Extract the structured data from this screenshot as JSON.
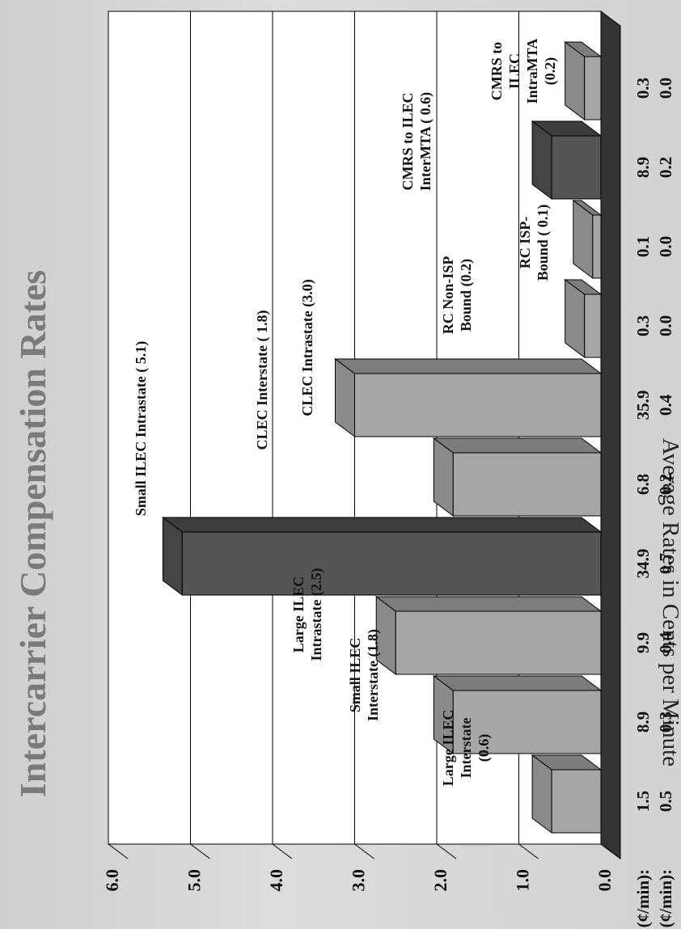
{
  "chart_data": {
    "type": "bar",
    "orientation": "rotated 90 degrees clockwise (value axis runs left to right)",
    "three_d": true,
    "title": "Intercarrier Compensation Rates",
    "ylabel": "Average Rates in Cents per Minute",
    "ylim": [
      0,
      6
    ],
    "yticks": [
      "0.0",
      "1.0",
      "2.0",
      "3.0",
      "4.0",
      "5.0",
      "6.0"
    ],
    "grid": true,
    "row_labels": {
      "high": "High (¢/min):",
      "low": "Low (¢/min):"
    },
    "categories": [
      "Large ILEC Interstate",
      "Small ILEC Interstate",
      "Large ILEC Intrastate",
      "Small ILEC Intrastate",
      "CLEC Interstate",
      "CLEC Intrastate",
      "RC Non-ISP Bound",
      "RC ISP-Bound",
      "CMRS to ILEC InterMTA",
      "CMRS to ILEC IntraMTA"
    ],
    "values": [
      0.6,
      1.8,
      2.5,
      5.1,
      1.8,
      3.0,
      0.2,
      0.1,
      0.6,
      0.2
    ],
    "high": [
      "1.5",
      "8.9",
      "9.9",
      "34.9",
      "6.8",
      "35.9",
      "0.3",
      "0.1",
      "8.9",
      "0.3"
    ],
    "low": [
      "0.5",
      "0.3",
      "0.4",
      "0.7",
      "0.2",
      "0.4",
      "0.0",
      "0.0",
      "0.2",
      "0.0"
    ],
    "annotations": [
      [
        "Large ILEC",
        "Interstate",
        "(0.6)"
      ],
      [
        "Small ILEC",
        "Interstate (1.8)"
      ],
      [
        "Large ILEC",
        "Intrastate (2.5)"
      ],
      [
        "Small ILEC Intrastate ( 5.1)"
      ],
      [
        "CLEC Interstate ( 1.8)"
      ],
      [
        "CLEC Intrastate (3.0)"
      ],
      [
        "RC Non-ISP",
        "Bound (0.2)"
      ],
      [
        "RC ISP-",
        "Bound ( 0.1)"
      ],
      [
        "CMRS to ILEC",
        "InterMTA ( 0.6)"
      ],
      [
        "CMRS to",
        "ILEC",
        "IntraMTA",
        "(0.2)"
      ]
    ],
    "colors": {
      "background": "#d6d6d6",
      "plot_area": "#ffffff",
      "light_bar": "#a6a6a6",
      "dark_bar": "#555555",
      "floor": "#333333",
      "text": "#111111",
      "title": "#7a7a7a"
    }
  }
}
